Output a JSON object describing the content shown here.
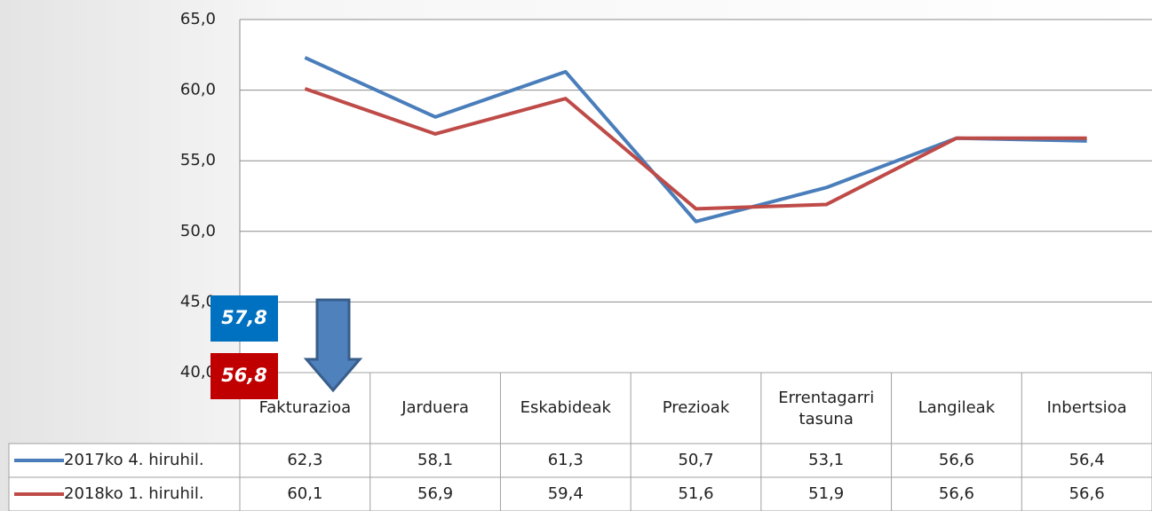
{
  "chart_data": {
    "type": "line",
    "categories": [
      "Fakturazioa",
      "Jarduera",
      "Eskabideak",
      "Prezioak",
      "Errentagarri tasuna",
      "Langileak",
      "Inbertsioa"
    ],
    "series": [
      {
        "name": "2017ko 4. hiruhil.",
        "color": "#4a7ebb",
        "values": [
          62.3,
          58.1,
          61.3,
          50.7,
          53.1,
          56.6,
          56.4
        ],
        "value_labels": [
          "62,3",
          "58,1",
          "61,3",
          "50,7",
          "53,1",
          "56,6",
          "56,4"
        ]
      },
      {
        "name": "2018ko 1. hiruhil.",
        "color": "#be4b48",
        "values": [
          60.1,
          56.9,
          59.4,
          51.6,
          51.9,
          56.6,
          56.6
        ],
        "value_labels": [
          "60,1",
          "56,9",
          "59,4",
          "51,6",
          "51,9",
          "56,6",
          "56,6"
        ]
      }
    ],
    "ylim": [
      40,
      65
    ],
    "yticks": [
      {
        "value": 40,
        "label": "40,0"
      },
      {
        "value": 45,
        "label": "45,0"
      },
      {
        "value": 50,
        "label": "50,0"
      },
      {
        "value": 55,
        "label": "55,0"
      },
      {
        "value": 60,
        "label": "60,0"
      },
      {
        "value": 65,
        "label": "65,0"
      }
    ],
    "grid": true,
    "annotations": [
      {
        "label": "57,8",
        "color": "#0070c0"
      },
      {
        "label": "56,8",
        "color": "#c00000"
      }
    ]
  }
}
